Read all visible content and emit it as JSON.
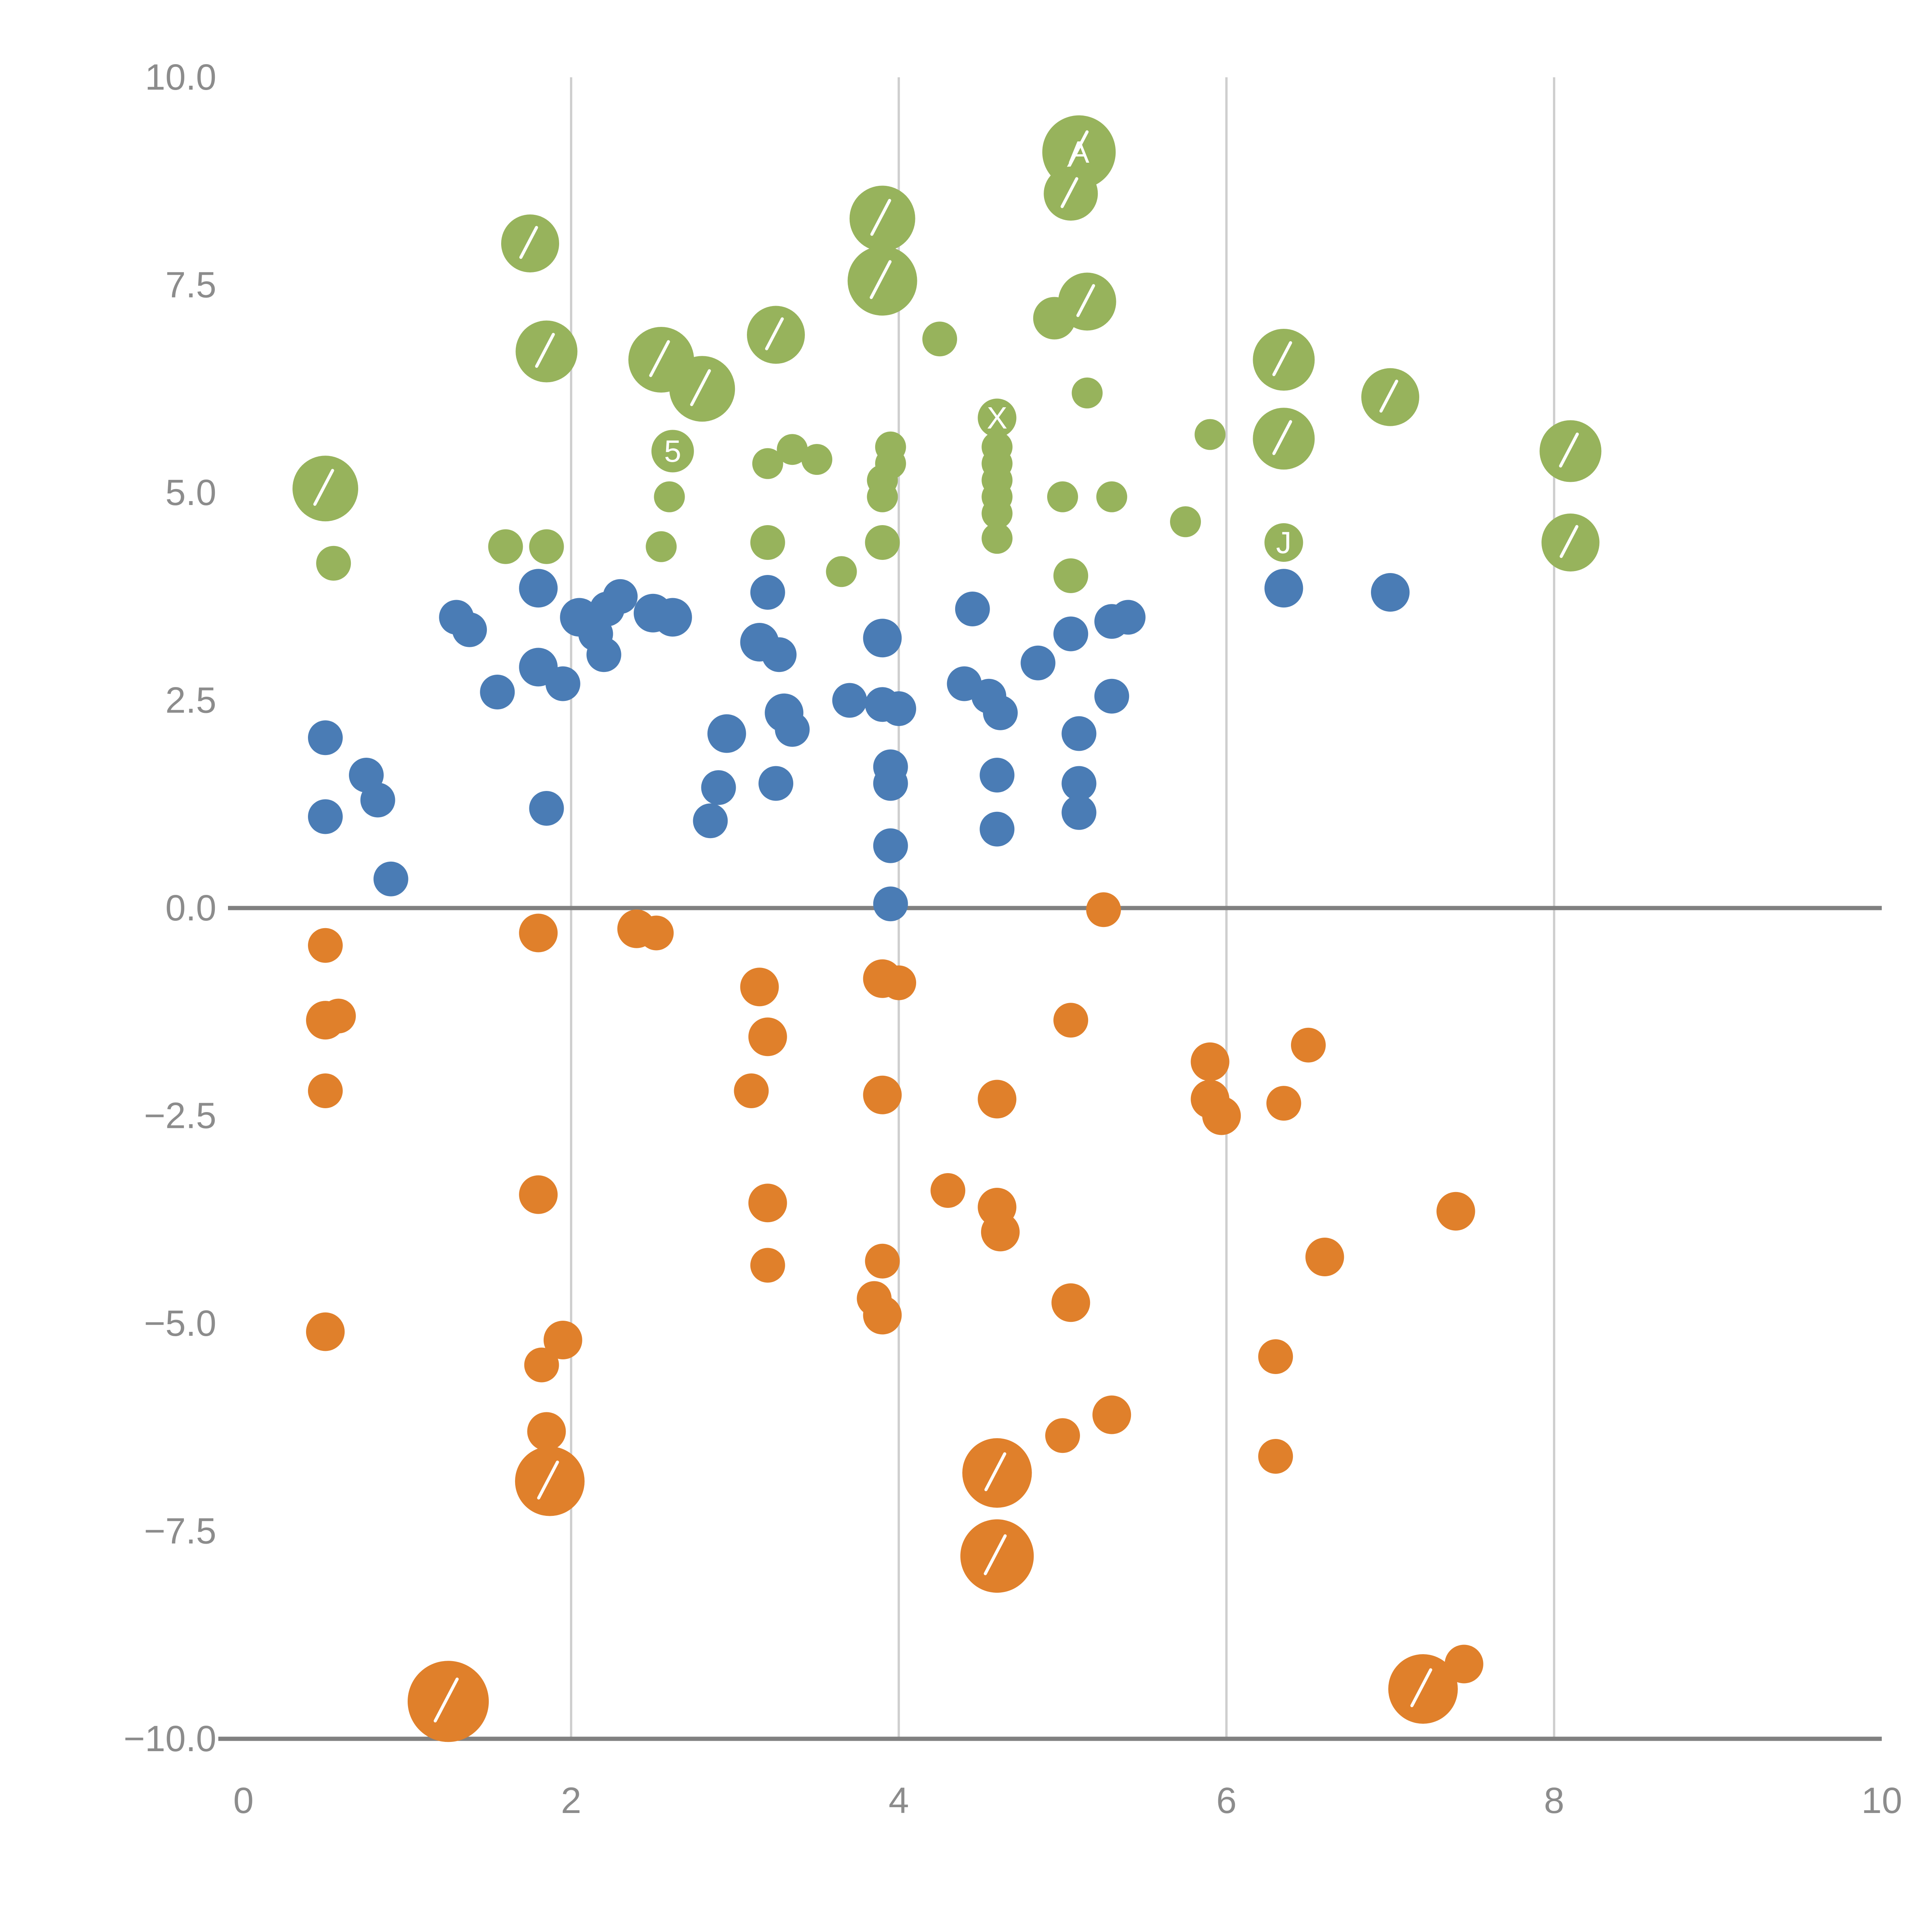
{
  "colors": {
    "background": "#ffffff",
    "axis_text": "#8c8c8c",
    "gridline": "#cfcfcf",
    "zero_line": "#808080",
    "axis_line": "#808080",
    "point_label": "#ffffff",
    "green": "#97b35c",
    "blue": "#4a7cb5",
    "orange": "#e0802b"
  },
  "decorations": {
    "large_bubble_white_slash": true
  },
  "chart_data": {
    "type": "scatter",
    "title": "",
    "xlabel": "",
    "ylabel": "",
    "xlim": [
      0,
      10
    ],
    "ylim": [
      -10,
      10
    ],
    "grid": "vertical gridlines only",
    "legend_position": "none",
    "x_tick_values": [
      0,
      2,
      4,
      6,
      8,
      10
    ],
    "x_ticks": [
      "0",
      "2",
      "4",
      "6",
      "8",
      "10"
    ],
    "y_tick_values": [
      10,
      7.5,
      5,
      2.5,
      0,
      -2.5,
      -5,
      -7.5,
      -10
    ],
    "y_ticks": [
      "10.0",
      "7.5",
      "5.0",
      "2.5",
      "0.0",
      "−2.5",
      "−5.0",
      "−7.5",
      "−10.0"
    ],
    "vertical_gridlines": [
      2,
      4,
      6,
      8
    ],
    "zero_line_y": 0,
    "series": [
      {
        "name": "green",
        "color": "#97b35c",
        "points": [
          [
            0.5,
            5.05,
            17
          ],
          [
            0.55,
            4.15,
            9
          ],
          [
            1.75,
            8.0,
            15
          ],
          [
            1.85,
            6.7,
            16
          ],
          [
            1.6,
            4.35,
            9
          ],
          [
            1.85,
            4.35,
            9
          ],
          [
            2.55,
            6.6,
            17
          ],
          [
            2.8,
            6.25,
            17
          ],
          [
            2.62,
            5.5,
            11,
            "5"
          ],
          [
            2.6,
            4.95,
            8
          ],
          [
            2.55,
            4.35,
            8
          ],
          [
            3.25,
            6.9,
            15
          ],
          [
            3.2,
            5.35,
            8
          ],
          [
            3.35,
            5.52,
            8
          ],
          [
            3.5,
            5.4,
            8
          ],
          [
            3.2,
            4.4,
            9
          ],
          [
            3.65,
            4.05,
            8
          ],
          [
            3.9,
            8.3,
            17
          ],
          [
            3.9,
            7.55,
            18
          ],
          [
            3.95,
            5.55,
            8
          ],
          [
            3.95,
            5.35,
            8
          ],
          [
            3.9,
            5.15,
            8
          ],
          [
            3.9,
            4.95,
            8
          ],
          [
            3.9,
            4.4,
            9
          ],
          [
            4.25,
            6.85,
            9
          ],
          [
            4.6,
            5.9,
            10,
            "X"
          ],
          [
            4.6,
            5.55,
            8
          ],
          [
            4.6,
            5.35,
            8
          ],
          [
            4.6,
            5.15,
            8
          ],
          [
            4.6,
            4.95,
            8
          ],
          [
            4.6,
            4.75,
            8
          ],
          [
            4.6,
            4.45,
            8
          ],
          [
            5.1,
            9.1,
            19,
            "A"
          ],
          [
            5.05,
            8.6,
            14
          ],
          [
            5.15,
            7.3,
            15
          ],
          [
            4.95,
            7.1,
            11
          ],
          [
            5.15,
            6.2,
            8
          ],
          [
            5.0,
            4.95,
            8
          ],
          [
            5.3,
            4.95,
            8
          ],
          [
            5.05,
            4.0,
            9
          ],
          [
            5.9,
            5.7,
            8
          ],
          [
            5.75,
            4.65,
            8
          ],
          [
            6.35,
            6.6,
            16
          ],
          [
            6.35,
            5.65,
            16
          ],
          [
            6.35,
            4.4,
            10,
            "J"
          ],
          [
            7.0,
            6.15,
            15
          ],
          [
            8.1,
            5.5,
            16
          ],
          [
            8.1,
            4.4,
            15
          ]
        ]
      },
      {
        "name": "blue",
        "color": "#4a7cb5",
        "points": [
          [
            0.5,
            2.05,
            9
          ],
          [
            0.5,
            1.1,
            9
          ],
          [
            0.75,
            1.6,
            9
          ],
          [
            0.82,
            1.3,
            9
          ],
          [
            0.9,
            0.35,
            9
          ],
          [
            1.3,
            3.5,
            9
          ],
          [
            1.38,
            3.35,
            9
          ],
          [
            1.55,
            2.6,
            9
          ],
          [
            1.8,
            3.85,
            10
          ],
          [
            1.8,
            2.9,
            10
          ],
          [
            1.95,
            2.7,
            9
          ],
          [
            1.85,
            1.2,
            9
          ],
          [
            2.05,
            3.5,
            10
          ],
          [
            2.15,
            3.3,
            9
          ],
          [
            2.22,
            3.6,
            9
          ],
          [
            2.3,
            3.75,
            9
          ],
          [
            2.2,
            3.05,
            9
          ],
          [
            2.5,
            3.55,
            10
          ],
          [
            2.62,
            3.5,
            10
          ],
          [
            2.85,
            1.05,
            9
          ],
          [
            2.9,
            1.45,
            9
          ],
          [
            2.95,
            2.1,
            10
          ],
          [
            3.2,
            3.8,
            9
          ],
          [
            3.15,
            3.2,
            10
          ],
          [
            3.27,
            3.05,
            9
          ],
          [
            3.3,
            2.35,
            10
          ],
          [
            3.35,
            2.15,
            9
          ],
          [
            3.25,
            1.5,
            9
          ],
          [
            3.7,
            2.5,
            9
          ],
          [
            3.9,
            3.25,
            10
          ],
          [
            3.9,
            2.45,
            9
          ],
          [
            4.0,
            2.4,
            9
          ],
          [
            3.95,
            1.7,
            9
          ],
          [
            3.95,
            1.5,
            9
          ],
          [
            3.95,
            0.75,
            9
          ],
          [
            3.95,
            0.05,
            9
          ],
          [
            4.45,
            3.6,
            9
          ],
          [
            4.4,
            2.7,
            9
          ],
          [
            4.55,
            2.55,
            9
          ],
          [
            4.62,
            2.35,
            9
          ],
          [
            4.6,
            1.6,
            9
          ],
          [
            4.6,
            0.95,
            9
          ],
          [
            4.85,
            2.95,
            9
          ],
          [
            5.05,
            3.3,
            9
          ],
          [
            5.1,
            2.1,
            9
          ],
          [
            5.1,
            1.5,
            9
          ],
          [
            5.1,
            1.15,
            9
          ],
          [
            5.3,
            3.45,
            9
          ],
          [
            5.4,
            3.5,
            9
          ],
          [
            5.3,
            2.55,
            9
          ],
          [
            6.35,
            3.85,
            10
          ],
          [
            7.0,
            3.8,
            10
          ]
        ]
      },
      {
        "name": "orange",
        "color": "#e0802b",
        "points": [
          [
            0.5,
            -0.45,
            9
          ],
          [
            0.5,
            -1.35,
            10
          ],
          [
            0.58,
            -1.3,
            9
          ],
          [
            0.5,
            -2.2,
            9
          ],
          [
            0.5,
            -5.1,
            10
          ],
          [
            1.25,
            -9.55,
            21
          ],
          [
            1.8,
            -0.3,
            10
          ],
          [
            1.8,
            -3.45,
            10
          ],
          [
            1.82,
            -5.5,
            9
          ],
          [
            1.95,
            -5.2,
            10
          ],
          [
            1.85,
            -6.3,
            10
          ],
          [
            1.87,
            -6.9,
            18
          ],
          [
            2.4,
            -0.25,
            10
          ],
          [
            2.52,
            -0.3,
            9
          ],
          [
            3.15,
            -0.95,
            10
          ],
          [
            3.2,
            -1.55,
            10
          ],
          [
            3.1,
            -2.2,
            9
          ],
          [
            3.2,
            -3.55,
            10
          ],
          [
            3.2,
            -4.3,
            9
          ],
          [
            3.9,
            -0.85,
            10
          ],
          [
            4.0,
            -0.9,
            9
          ],
          [
            3.9,
            -2.25,
            10
          ],
          [
            3.9,
            -4.25,
            9
          ],
          [
            3.85,
            -4.7,
            9
          ],
          [
            3.9,
            -4.9,
            10
          ],
          [
            4.3,
            -3.4,
            9
          ],
          [
            4.6,
            -2.3,
            10
          ],
          [
            4.6,
            -3.6,
            10
          ],
          [
            4.62,
            -3.9,
            10
          ],
          [
            4.6,
            -6.8,
            18
          ],
          [
            4.6,
            -7.8,
            19
          ],
          [
            5.05,
            -1.35,
            9
          ],
          [
            5.05,
            -4.75,
            10
          ],
          [
            5.0,
            -6.35,
            9
          ],
          [
            5.25,
            -0.02,
            9
          ],
          [
            5.3,
            -6.1,
            10
          ],
          [
            5.9,
            -1.85,
            10
          ],
          [
            5.9,
            -2.3,
            10
          ],
          [
            5.97,
            -2.5,
            10
          ],
          [
            6.35,
            -2.35,
            9
          ],
          [
            6.5,
            -1.65,
            9
          ],
          [
            6.3,
            -5.4,
            9
          ],
          [
            6.3,
            -6.6,
            9
          ],
          [
            6.6,
            -4.2,
            10
          ],
          [
            7.2,
            -9.4,
            18
          ],
          [
            7.45,
            -9.1,
            10
          ],
          [
            7.4,
            -3.65,
            10
          ]
        ]
      }
    ]
  }
}
